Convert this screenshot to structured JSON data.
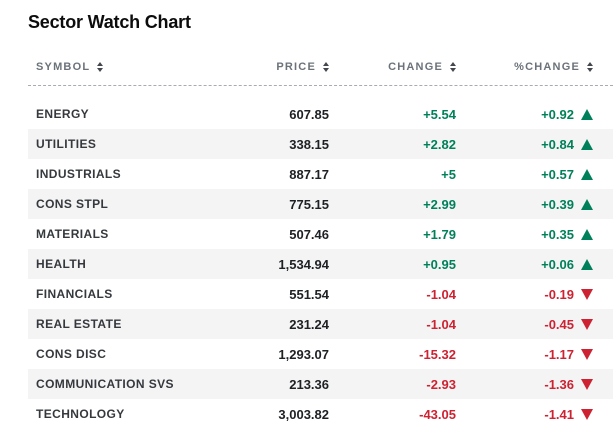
{
  "page": {
    "title": "Sector Watch Chart"
  },
  "colors": {
    "positive": "#00805a",
    "negative": "#cc2231",
    "row_alt_background": "#f4f4f5",
    "header_text": "#6b727a",
    "symbol_text": "#35393d",
    "number_text": "#1e2124",
    "title_text": "#0c0c0c",
    "divider": "#a8acb1"
  },
  "table": {
    "columns": [
      {
        "key": "symbol",
        "label": "SYMBOL",
        "align": "left",
        "sortable": true,
        "sort_icon": "sort-arrows-icon"
      },
      {
        "key": "price",
        "label": "PRICE",
        "align": "right",
        "sortable": true,
        "sort_icon": "sort-arrows-icon"
      },
      {
        "key": "change",
        "label": "CHANGE",
        "align": "right",
        "sortable": true,
        "sort_icon": "sort-arrows-icon"
      },
      {
        "key": "pct_change",
        "label": "%CHANGE",
        "align": "right",
        "sortable": true,
        "sort_icon": "sort-arrows-icon"
      }
    ],
    "rows": [
      {
        "symbol": "ENERGY",
        "price": "607.85",
        "change": "+5.54",
        "pct_change": "+0.92",
        "direction": "up"
      },
      {
        "symbol": "UTILITIES",
        "price": "338.15",
        "change": "+2.82",
        "pct_change": "+0.84",
        "direction": "up"
      },
      {
        "symbol": "INDUSTRIALS",
        "price": "887.17",
        "change": "+5",
        "pct_change": "+0.57",
        "direction": "up"
      },
      {
        "symbol": "CONS STPL",
        "price": "775.15",
        "change": "+2.99",
        "pct_change": "+0.39",
        "direction": "up"
      },
      {
        "symbol": "MATERIALS",
        "price": "507.46",
        "change": "+1.79",
        "pct_change": "+0.35",
        "direction": "up"
      },
      {
        "symbol": "HEALTH",
        "price": "1,534.94",
        "change": "+0.95",
        "pct_change": "+0.06",
        "direction": "up"
      },
      {
        "symbol": "FINANCIALS",
        "price": "551.54",
        "change": "-1.04",
        "pct_change": "-0.19",
        "direction": "down"
      },
      {
        "symbol": "REAL ESTATE",
        "price": "231.24",
        "change": "-1.04",
        "pct_change": "-0.45",
        "direction": "down"
      },
      {
        "symbol": "CONS DISC",
        "price": "1,293.07",
        "change": "-15.32",
        "pct_change": "-1.17",
        "direction": "down"
      },
      {
        "symbol": "COMMUNICATION SVS",
        "price": "213.36",
        "change": "-2.93",
        "pct_change": "-1.36",
        "direction": "down"
      },
      {
        "symbol": "TECHNOLOGY",
        "price": "3,003.82",
        "change": "-43.05",
        "pct_change": "-1.41",
        "direction": "down"
      }
    ]
  }
}
